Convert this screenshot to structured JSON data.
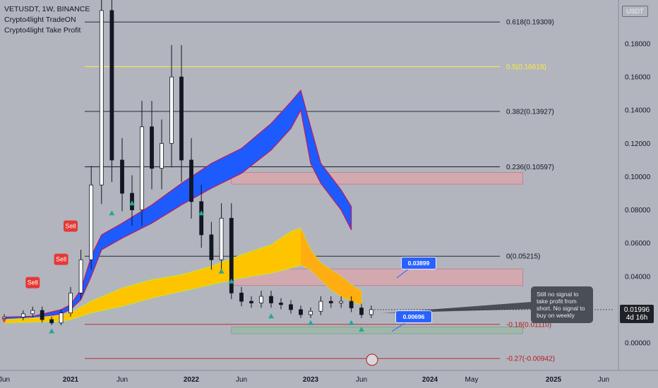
{
  "legend": {
    "symbol": "VETUSDT, 1W, BINANCE",
    "indicator_1": "Crypto4light TradeON",
    "indicator_2": "Crypto4light Take Profit"
  },
  "currency_label": "USDT",
  "current_price": {
    "value": "0.01996",
    "countdown": "4d 16h"
  },
  "callout_text": "Still no signal to take profit from short. No signal to buy on weekly",
  "price_tags": [
    "0.03899",
    "0.00696"
  ],
  "colors": {
    "background": "#b2b5be",
    "blue_band": "#1e5bff",
    "yellow_band": "#ffc400",
    "orange_band": "#ff9f1a",
    "red_zone": "#d9a7ae",
    "green_zone": "#9fb8a8",
    "sell_marker": "#e53935",
    "buy_marker": "#26a69a"
  },
  "chart_data": {
    "type": "candlestick",
    "y_axis": {
      "range": [
        -0.012,
        0.2
      ],
      "ticks": [
        "0.18000",
        "0.16000",
        "0.14000",
        "0.12000",
        "0.10000",
        "0.08000",
        "0.06000",
        "0.04000",
        "0.02000",
        "0.00000"
      ]
    },
    "x_axis": {
      "labels": [
        {
          "label": "Jun",
          "date": "2020-06"
        },
        {
          "label": "2021",
          "date": "2021-01"
        },
        {
          "label": "Jun",
          "date": "2021-06"
        },
        {
          "label": "2022",
          "date": "2022-01"
        },
        {
          "label": "Jun",
          "date": "2022-06"
        },
        {
          "label": "2023",
          "date": "2023-01"
        },
        {
          "label": "Jun",
          "date": "2023-06"
        },
        {
          "label": "2024",
          "date": "2024-01"
        },
        {
          "label": "May",
          "date": "2024-05"
        },
        {
          "label": "2025",
          "date": "2025-01"
        },
        {
          "label": "Jun",
          "date": "2025-06"
        }
      ]
    },
    "fib_levels": [
      {
        "label": "0.618(0.19309)",
        "value": 0.19309,
        "color": "#131722"
      },
      {
        "label": "0.5(0.16618)",
        "value": 0.16618,
        "color": "#ffeb3b"
      },
      {
        "label": "0.382(0.13927)",
        "value": 0.13927,
        "color": "#131722"
      },
      {
        "label": "0.236(0.10597)",
        "value": 0.10597,
        "color": "#131722"
      },
      {
        "label": "0(0.05215)",
        "value": 0.05215,
        "color": "#131722"
      },
      {
        "label": "-0.18(0.01110)",
        "value": 0.0111,
        "color": "#b71c1c"
      },
      {
        "label": "-0.27(-0.00942)",
        "value": -0.00942,
        "color": "#b71c1c"
      }
    ],
    "zones": [
      {
        "kind": "resistance",
        "from": 0.0955,
        "to": 0.1025,
        "start": "2022-05",
        "end": "2024-10"
      },
      {
        "kind": "resistance",
        "from": 0.0345,
        "to": 0.0445,
        "start": "2022-05",
        "end": "2024-10"
      },
      {
        "kind": "support",
        "from": 0.0055,
        "to": 0.0095,
        "start": "2022-05",
        "end": "2024-10"
      }
    ],
    "signals": [
      {
        "type": "sell",
        "label": "Sell",
        "date": "2020-09",
        "value": 0.032
      },
      {
        "type": "sell",
        "label": "Sell",
        "date": "2020-12",
        "value": 0.046
      },
      {
        "type": "sell",
        "label": "Sell",
        "date": "2021-01",
        "value": 0.066
      },
      {
        "type": "buy",
        "date": "2020-11",
        "value": 0.007
      },
      {
        "type": "buy",
        "date": "2021-05",
        "value": 0.078
      },
      {
        "type": "buy",
        "date": "2021-07",
        "value": 0.084
      },
      {
        "type": "buy",
        "date": "2022-02",
        "value": 0.078
      },
      {
        "type": "buy",
        "date": "2022-04",
        "value": 0.043
      },
      {
        "type": "buy",
        "date": "2022-05",
        "value": 0.037
      },
      {
        "type": "buy",
        "date": "2022-09",
        "value": 0.016
      },
      {
        "type": "buy",
        "date": "2023-01",
        "value": 0.012
      },
      {
        "type": "buy",
        "date": "2023-05",
        "value": 0.012
      },
      {
        "type": "buy",
        "date": "2023-06",
        "value": 0.008
      }
    ],
    "series": [
      {
        "name": "VETUSDT",
        "points": [
          [
            "2020-06",
            0.0155
          ],
          [
            "2020-08",
            0.0175
          ],
          [
            "2020-09",
            0.0195
          ],
          [
            "2020-10",
            0.014
          ],
          [
            "2020-11",
            0.012
          ],
          [
            "2020-12",
            0.018
          ],
          [
            "2021-01",
            0.03
          ],
          [
            "2021-02",
            0.05
          ],
          [
            "2021-03",
            0.095
          ],
          [
            "2021-04",
            0.2
          ],
          [
            "2021-05",
            0.11
          ],
          [
            "2021-06",
            0.09
          ],
          [
            "2021-07",
            0.08
          ],
          [
            "2021-08",
            0.13
          ],
          [
            "2021-09",
            0.105
          ],
          [
            "2021-10",
            0.12
          ],
          [
            "2021-11",
            0.16
          ],
          [
            "2021-12",
            0.11
          ],
          [
            "2022-01",
            0.085
          ],
          [
            "2022-02",
            0.065
          ],
          [
            "2022-03",
            0.05
          ],
          [
            "2022-04",
            0.075
          ],
          [
            "2022-05",
            0.03
          ],
          [
            "2022-06",
            0.025
          ],
          [
            "2022-07",
            0.024
          ],
          [
            "2022-08",
            0.028
          ],
          [
            "2022-09",
            0.024
          ],
          [
            "2022-10",
            0.023
          ],
          [
            "2022-11",
            0.02
          ],
          [
            "2022-12",
            0.017
          ],
          [
            "2023-01",
            0.019
          ],
          [
            "2023-02",
            0.025
          ],
          [
            "2023-03",
            0.024
          ],
          [
            "2023-04",
            0.025
          ],
          [
            "2023-05",
            0.021
          ],
          [
            "2023-06",
            0.017
          ],
          [
            "2023-07",
            0.02
          ]
        ]
      },
      {
        "name": "blue-band-upper",
        "points": [
          [
            "2020-06",
            0.0155
          ],
          [
            "2020-09",
            0.016
          ],
          [
            "2020-12",
            0.02
          ],
          [
            "2021-01",
            0.023
          ],
          [
            "2021-02",
            0.032
          ],
          [
            "2021-03",
            0.052
          ],
          [
            "2021-04",
            0.065
          ],
          [
            "2021-06",
            0.072
          ],
          [
            "2021-09",
            0.083
          ],
          [
            "2021-12",
            0.096
          ],
          [
            "2022-03",
            0.108
          ],
          [
            "2022-06",
            0.117
          ],
          [
            "2022-09",
            0.132
          ],
          [
            "2022-11",
            0.145
          ],
          [
            "2022-12",
            0.152
          ],
          [
            "2023-01",
            0.13
          ],
          [
            "2023-02",
            0.108
          ],
          [
            "2023-03",
            0.1
          ],
          [
            "2023-04",
            0.092
          ],
          [
            "2023-05",
            0.082
          ]
        ]
      },
      {
        "name": "blue-band-lower",
        "points": [
          [
            "2020-06",
            0.014
          ],
          [
            "2020-09",
            0.0145
          ],
          [
            "2020-12",
            0.0175
          ],
          [
            "2021-01",
            0.02
          ],
          [
            "2021-02",
            0.026
          ],
          [
            "2021-03",
            0.04
          ],
          [
            "2021-04",
            0.056
          ],
          [
            "2021-06",
            0.063
          ],
          [
            "2021-09",
            0.072
          ],
          [
            "2021-12",
            0.083
          ],
          [
            "2022-03",
            0.093
          ],
          [
            "2022-06",
            0.102
          ],
          [
            "2022-09",
            0.116
          ],
          [
            "2022-11",
            0.129
          ],
          [
            "2022-12",
            0.14
          ],
          [
            "2023-01",
            0.108
          ],
          [
            "2023-02",
            0.096
          ],
          [
            "2023-03",
            0.088
          ],
          [
            "2023-04",
            0.08
          ],
          [
            "2023-05",
            0.068
          ]
        ]
      },
      {
        "name": "yellow-band-upper",
        "points": [
          [
            "2020-06",
            0.014
          ],
          [
            "2020-09",
            0.015
          ],
          [
            "2020-12",
            0.0165
          ],
          [
            "2021-01",
            0.018
          ],
          [
            "2021-03",
            0.025
          ],
          [
            "2021-06",
            0.033
          ],
          [
            "2021-09",
            0.038
          ],
          [
            "2021-12",
            0.041
          ],
          [
            "2022-03",
            0.046
          ],
          [
            "2022-06",
            0.053
          ],
          [
            "2022-09",
            0.059
          ],
          [
            "2022-11",
            0.067
          ],
          [
            "2022-12",
            0.069
          ],
          [
            "2023-01",
            0.056
          ],
          [
            "2023-02",
            0.048
          ],
          [
            "2023-03",
            0.044
          ],
          [
            "2023-04",
            0.04
          ],
          [
            "2023-05",
            0.035
          ],
          [
            "2023-06",
            0.031
          ]
        ]
      },
      {
        "name": "yellow-band-lower",
        "points": [
          [
            "2020-06",
            0.012
          ],
          [
            "2020-09",
            0.0125
          ],
          [
            "2020-12",
            0.013
          ],
          [
            "2021-01",
            0.014
          ],
          [
            "2021-03",
            0.018
          ],
          [
            "2021-06",
            0.022
          ],
          [
            "2021-09",
            0.027
          ],
          [
            "2021-12",
            0.031
          ],
          [
            "2022-03",
            0.035
          ],
          [
            "2022-06",
            0.039
          ],
          [
            "2022-09",
            0.042
          ],
          [
            "2022-11",
            0.045
          ],
          [
            "2022-12",
            0.047
          ],
          [
            "2023-01",
            0.044
          ],
          [
            "2023-02",
            0.038
          ],
          [
            "2023-03",
            0.032
          ],
          [
            "2023-04",
            0.028
          ],
          [
            "2023-05",
            0.025
          ],
          [
            "2023-06",
            0.023
          ]
        ]
      }
    ]
  }
}
